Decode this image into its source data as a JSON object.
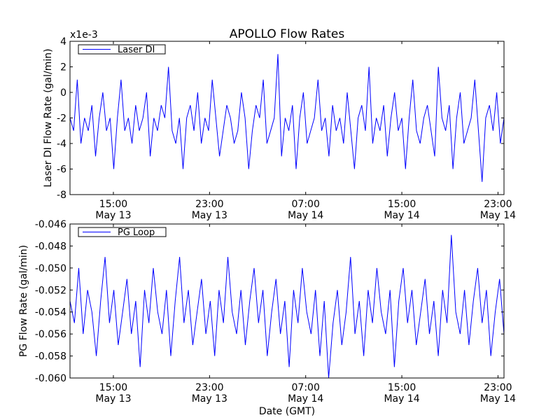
{
  "chart_data": [
    {
      "type": "line",
      "title": "APOLLO Flow Rates",
      "ylabel": "Laser DI Flow Rate (gal/min)",
      "xlabel": "",
      "offset_label": "x1e-3",
      "legend": {
        "entries": [
          "Laser DI"
        ],
        "placement": "top-left"
      },
      "color": "#0000ff",
      "ylim": [
        -8,
        4
      ],
      "yticks": [
        4,
        2,
        0,
        -2,
        -4,
        -6,
        -8
      ],
      "ytick_labels": [
        "4",
        "2",
        "0",
        "-2",
        "-4",
        "-6",
        "-8"
      ],
      "xlim_hours_from_may13_0000": [
        11.39,
        47.5
      ],
      "xticks_hours": [
        15,
        23,
        31,
        39,
        47
      ],
      "xtick_labels": [
        [
          "15:00",
          "May 13"
        ],
        [
          "23:00",
          "May 13"
        ],
        [
          "07:00",
          "May 14"
        ],
        [
          "15:00",
          "May 14"
        ],
        [
          "23:00",
          "May 14"
        ]
      ],
      "grid": false,
      "series": [
        {
          "name": "Laser DI",
          "unit_scale": "x1e-3",
          "values": [
            -2,
            -3,
            1,
            -4,
            -2,
            -3,
            -1,
            -5,
            -2,
            0,
            -3,
            -2,
            -6,
            -2,
            1,
            -3,
            -2,
            -4,
            -1,
            -3,
            -2,
            0,
            -5,
            -2,
            -3,
            -1,
            -2,
            2,
            -3,
            -4,
            -2,
            -6,
            -2,
            -1,
            -3,
            0,
            -4,
            -2,
            -3,
            1,
            -2,
            -5,
            -3,
            -1,
            -2,
            -4,
            -3,
            0,
            -2,
            -6,
            -3,
            -1,
            -2,
            1,
            -4,
            -3,
            -2,
            3,
            -5,
            -2,
            -3,
            -1,
            -6,
            -2,
            0,
            -4,
            -3,
            -2,
            1,
            -3,
            -2,
            -5,
            -1,
            -3,
            -2,
            -4,
            0,
            -3,
            -6,
            -2,
            -1,
            -3,
            2,
            -4,
            -2,
            -3,
            -1,
            -5,
            -2,
            0,
            -3,
            -2,
            -6,
            -2,
            1,
            -3,
            -4,
            -2,
            -1,
            -3,
            -5,
            2,
            -2,
            -3,
            -1,
            -6,
            -2,
            0,
            -4,
            -3,
            -2,
            1,
            -3,
            -7,
            -2,
            -1,
            -3,
            0,
            -4,
            -2
          ]
        }
      ]
    },
    {
      "type": "line",
      "title": "",
      "ylabel": "PG Flow Rate (gal/min)",
      "xlabel": "Date (GMT)",
      "legend": {
        "entries": [
          "PG Loop"
        ],
        "placement": "top-left"
      },
      "color": "#0000ff",
      "ylim": [
        -0.06,
        -0.046
      ],
      "yticks": [
        -0.046,
        -0.048,
        -0.05,
        -0.052,
        -0.054,
        -0.056,
        -0.058,
        -0.06
      ],
      "ytick_labels": [
        "-0.046",
        "-0.048",
        "-0.050",
        "-0.052",
        "-0.054",
        "-0.056",
        "-0.058",
        "-0.060"
      ],
      "xlim_hours_from_may13_0000": [
        11.39,
        47.5
      ],
      "xticks_hours": [
        15,
        23,
        31,
        39,
        47
      ],
      "xtick_labels": [
        [
          "15:00",
          "May 13"
        ],
        [
          "23:00",
          "May 13"
        ],
        [
          "07:00",
          "May 14"
        ],
        [
          "15:00",
          "May 14"
        ],
        [
          "23:00",
          "May 14"
        ]
      ],
      "grid": false,
      "series": [
        {
          "name": "PG Loop",
          "values": [
            -0.053,
            -0.055,
            -0.05,
            -0.056,
            -0.052,
            -0.054,
            -0.058,
            -0.053,
            -0.049,
            -0.055,
            -0.052,
            -0.057,
            -0.054,
            -0.051,
            -0.056,
            -0.053,
            -0.059,
            -0.052,
            -0.055,
            -0.05,
            -0.054,
            -0.056,
            -0.052,
            -0.058,
            -0.053,
            -0.049,
            -0.055,
            -0.052,
            -0.057,
            -0.054,
            -0.051,
            -0.056,
            -0.053,
            -0.058,
            -0.052,
            -0.055,
            -0.049,
            -0.054,
            -0.056,
            -0.052,
            -0.057,
            -0.053,
            -0.05,
            -0.055,
            -0.052,
            -0.058,
            -0.054,
            -0.051,
            -0.056,
            -0.053,
            -0.059,
            -0.052,
            -0.055,
            -0.05,
            -0.054,
            -0.056,
            -0.052,
            -0.058,
            -0.053,
            -0.06,
            -0.055,
            -0.052,
            -0.057,
            -0.054,
            -0.049,
            -0.056,
            -0.053,
            -0.058,
            -0.052,
            -0.055,
            -0.05,
            -0.054,
            -0.056,
            -0.052,
            -0.059,
            -0.053,
            -0.05,
            -0.055,
            -0.052,
            -0.057,
            -0.054,
            -0.051,
            -0.056,
            -0.053,
            -0.058,
            -0.052,
            -0.055,
            -0.047,
            -0.054,
            -0.056,
            -0.052,
            -0.057,
            -0.053,
            -0.05,
            -0.055,
            -0.052,
            -0.058,
            -0.054,
            -0.051,
            -0.056
          ]
        }
      ]
    }
  ]
}
